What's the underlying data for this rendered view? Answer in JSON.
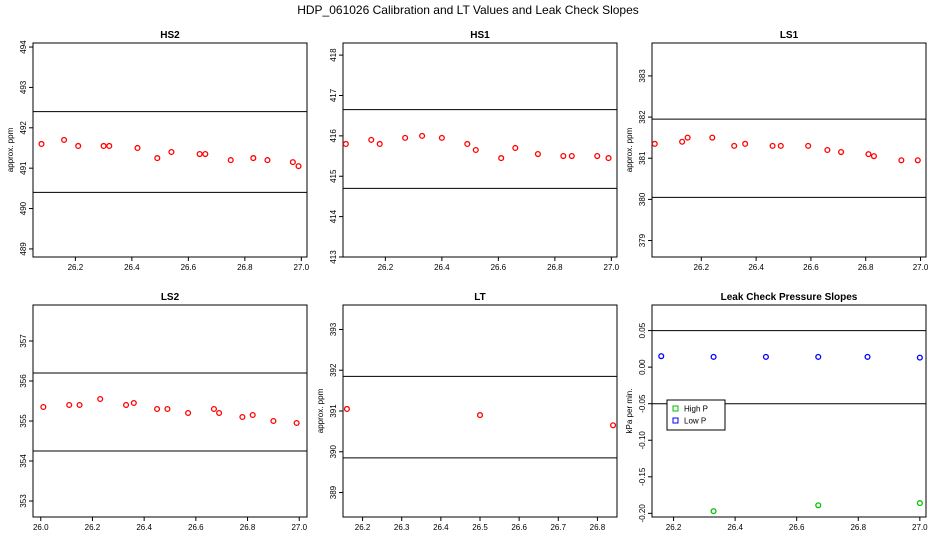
{
  "main_title": "HDP_061026  Calibration and LT Values and Leak Check Slopes",
  "chart_data": [
    {
      "type": "scatter",
      "title": "HS2",
      "ylabel": "approx. ppm",
      "xlim": [
        26.05,
        27.02
      ],
      "ylim": [
        488.8,
        494.1
      ],
      "xticks": [
        26.2,
        26.4,
        26.6,
        26.8,
        27.0
      ],
      "xtick_labels": [
        "26.2",
        "26.4",
        "26.6",
        "26.8",
        "27.0"
      ],
      "yticks": [
        489,
        490,
        491,
        492,
        493,
        494
      ],
      "ytick_labels": [
        "489",
        "490",
        "491",
        "492",
        "493",
        "494"
      ],
      "hlines": [
        490.4,
        492.4
      ],
      "series": [
        {
          "color": "#ff0000",
          "x": [
            26.08,
            26.16,
            26.21,
            26.3,
            26.32,
            26.42,
            26.49,
            26.54,
            26.64,
            26.66,
            26.75,
            26.83,
            26.88,
            26.97,
            26.99
          ],
          "y": [
            491.6,
            491.7,
            491.55,
            491.55,
            491.55,
            491.5,
            491.25,
            491.4,
            491.35,
            491.35,
            491.2,
            491.25,
            491.2,
            491.15,
            491.05
          ]
        }
      ]
    },
    {
      "type": "scatter",
      "title": "HS1",
      "ylabel": "",
      "xlim": [
        26.05,
        27.02
      ],
      "ylim": [
        413.0,
        418.3
      ],
      "xticks": [
        26.2,
        26.4,
        26.6,
        26.8,
        27.0
      ],
      "xtick_labels": [
        "26.2",
        "26.4",
        "26.6",
        "26.8",
        "27.0"
      ],
      "yticks": [
        413,
        414,
        415,
        416,
        417,
        418
      ],
      "ytick_labels": [
        "413",
        "414",
        "415",
        "416",
        "417",
        "418"
      ],
      "hlines": [
        414.7,
        416.65
      ],
      "series": [
        {
          "color": "#ff0000",
          "x": [
            26.06,
            26.15,
            26.18,
            26.27,
            26.33,
            26.4,
            26.49,
            26.52,
            26.61,
            26.66,
            26.74,
            26.83,
            26.86,
            26.95,
            26.99
          ],
          "y": [
            415.8,
            415.9,
            415.8,
            415.95,
            416.0,
            415.95,
            415.8,
            415.65,
            415.45,
            415.7,
            415.55,
            415.5,
            415.5,
            415.5,
            415.45
          ]
        }
      ]
    },
    {
      "type": "scatter",
      "title": "LS1",
      "ylabel": "approx. ppm",
      "xlim": [
        26.02,
        27.02
      ],
      "ylim": [
        378.6,
        383.8
      ],
      "xticks": [
        26.2,
        26.4,
        26.6,
        26.8,
        27.0
      ],
      "xtick_labels": [
        "26.2",
        "26.4",
        "26.6",
        "26.8",
        "27.0"
      ],
      "yticks": [
        379,
        380,
        381,
        382,
        383
      ],
      "ytick_labels": [
        "379",
        "380",
        "381",
        "382",
        "383"
      ],
      "hlines": [
        380.05,
        381.95
      ],
      "series": [
        {
          "color": "#ff0000",
          "x": [
            26.03,
            26.13,
            26.15,
            26.24,
            26.32,
            26.36,
            26.46,
            26.49,
            26.59,
            26.66,
            26.71,
            26.81,
            26.83,
            26.93,
            26.99
          ],
          "y": [
            381.35,
            381.4,
            381.5,
            381.5,
            381.3,
            381.35,
            381.3,
            381.3,
            381.3,
            381.2,
            381.15,
            381.1,
            381.05,
            380.95,
            380.95
          ]
        }
      ]
    },
    {
      "type": "scatter",
      "title": "LS2",
      "ylabel": "",
      "xlim": [
        25.97,
        27.03
      ],
      "ylim": [
        352.6,
        357.9
      ],
      "xticks": [
        26.0,
        26.2,
        26.4,
        26.6,
        26.8,
        27.0
      ],
      "xtick_labels": [
        "26.0",
        "26.2",
        "26.4",
        "26.6",
        "26.8",
        "27.0"
      ],
      "yticks": [
        353,
        354,
        355,
        356,
        357
      ],
      "ytick_labels": [
        "353",
        "354",
        "355",
        "356",
        "357"
      ],
      "hlines": [
        354.25,
        356.2
      ],
      "series": [
        {
          "color": "#ff0000",
          "x": [
            26.01,
            26.11,
            26.15,
            26.23,
            26.33,
            26.36,
            26.45,
            26.49,
            26.57,
            26.67,
            26.69,
            26.78,
            26.82,
            26.9,
            26.99
          ],
          "y": [
            355.35,
            355.4,
            355.4,
            355.55,
            355.4,
            355.45,
            355.3,
            355.3,
            355.2,
            355.3,
            355.2,
            355.1,
            355.15,
            355.0,
            354.95
          ]
        }
      ]
    },
    {
      "type": "scatter",
      "title": "LT",
      "ylabel": "approx. ppm",
      "xlim": [
        26.15,
        26.85
      ],
      "ylim": [
        388.4,
        393.6
      ],
      "xticks": [
        26.2,
        26.3,
        26.4,
        26.5,
        26.6,
        26.7,
        26.8
      ],
      "xtick_labels": [
        "26.2",
        "26.3",
        "26.4",
        "26.5",
        "26.6",
        "26.7",
        "26.8"
      ],
      "yticks": [
        389,
        390,
        391,
        392,
        393
      ],
      "ytick_labels": [
        "389",
        "390",
        "391",
        "392",
        "393"
      ],
      "hlines": [
        389.85,
        391.85
      ],
      "series": [
        {
          "color": "#ff0000",
          "x": [
            26.16,
            26.5,
            26.84
          ],
          "y": [
            391.05,
            390.9,
            390.65
          ]
        }
      ]
    },
    {
      "type": "scatter",
      "title": "Leak Check Pressure Slopes",
      "ylabel": "kPa per min.",
      "xlim": [
        26.13,
        27.02
      ],
      "ylim": [
        -0.205,
        0.085
      ],
      "xticks": [
        26.2,
        26.4,
        26.6,
        26.8,
        27.0
      ],
      "xtick_labels": [
        "26.2",
        "26.4",
        "26.6",
        "26.8",
        "27.0"
      ],
      "yticks": [
        -0.2,
        -0.15,
        -0.1,
        -0.05,
        0.0,
        0.05
      ],
      "ytick_labels": [
        "-0.20",
        "-0.15",
        "-0.10",
        "-0.05",
        "0.00",
        "0.05"
      ],
      "hlines": [
        -0.05,
        0.05
      ],
      "legend": {
        "position": "left",
        "entries": [
          {
            "label": "High P",
            "color": "#00c000"
          },
          {
            "label": "Low P",
            "color": "#0000ff"
          }
        ]
      },
      "series": [
        {
          "name": "High P",
          "color": "#00c000",
          "x": [
            26.33,
            26.67,
            27.0
          ],
          "y": [
            -0.197,
            -0.189,
            -0.186
          ]
        },
        {
          "name": "Low P",
          "color": "#0000ff",
          "x": [
            26.16,
            26.33,
            26.5,
            26.67,
            26.83,
            27.0
          ],
          "y": [
            0.015,
            0.014,
            0.014,
            0.014,
            0.014,
            0.013
          ]
        }
      ]
    }
  ]
}
